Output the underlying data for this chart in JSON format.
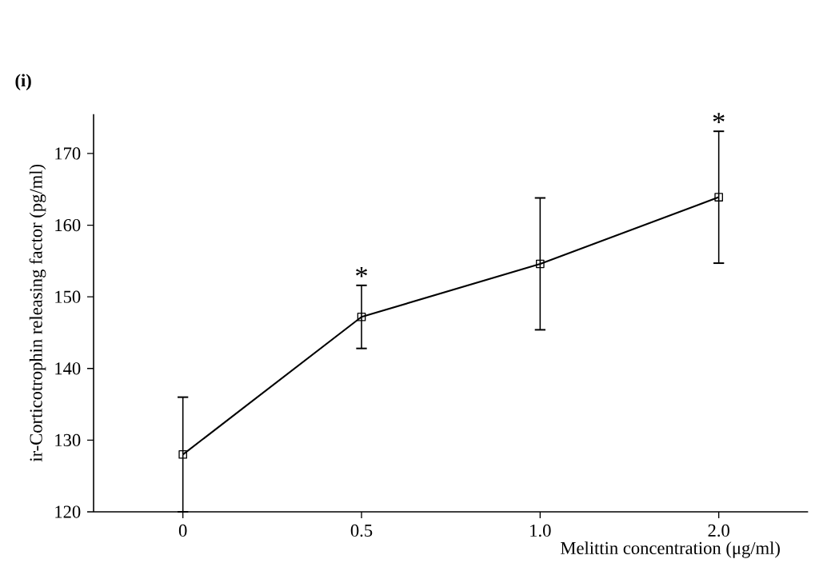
{
  "chart_data": {
    "type": "line",
    "title": "(i)",
    "xlabel": "Melittin concentration (μg/ml)",
    "ylabel": "ir-Corticotrophin releasing factor (pg/ml)",
    "categories": [
      "0",
      "0.5",
      "1.0",
      "2.0"
    ],
    "series": [
      {
        "color": "#000000",
        "values": [
          128,
          147.2,
          154.6,
          163.9
        ],
        "errors": [
          8,
          4.4,
          9.2,
          9.2
        ]
      }
    ],
    "ylim": [
      120,
      175.5
    ],
    "yticks": [
      120,
      130,
      140,
      150,
      160,
      170
    ],
    "marker": "square",
    "line_style": "solid",
    "annotations": [
      {
        "text": "*",
        "x": "0.5",
        "y": 151.6
      },
      {
        "text": "*",
        "x": "2.0",
        "y": 173.1
      }
    ]
  }
}
